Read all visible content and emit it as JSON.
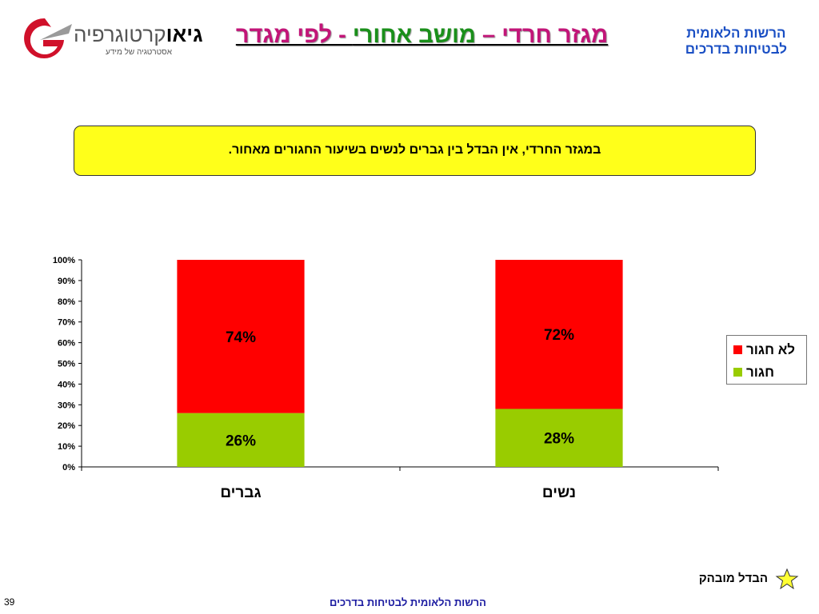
{
  "header": {
    "logo_brand_bold": "גיאו",
    "logo_brand_rest": "קרטוגרפיה",
    "logo_tagline": "אסטרטגיה של מידע",
    "title_part1": "מגזר חרדי – ",
    "title_part2": "מושב אחורי",
    "title_part3": " - לפי מגדר",
    "org_line1": "הרשות הלאומית",
    "org_line2": "לבטיחות בדרכים"
  },
  "callout": {
    "text": "במגזר החרדי, אין הבדל בין גברים לנשים בשיעור החגורים מאחור."
  },
  "chart_data": {
    "type": "bar",
    "stacked": true,
    "percent": true,
    "categories": [
      "גברים",
      "נשים"
    ],
    "series": [
      {
        "name": "חגור",
        "values": [
          26,
          28
        ],
        "labels": [
          "26%",
          "28%"
        ],
        "color": "#99cc00"
      },
      {
        "name": "לא חגור",
        "values": [
          74,
          72
        ],
        "labels": [
          "74%",
          "72%"
        ],
        "color": "#ff0000"
      }
    ],
    "ylim": [
      0,
      100
    ],
    "yticks": [
      "0%",
      "10%",
      "20%",
      "30%",
      "40%",
      "50%",
      "60%",
      "70%",
      "80%",
      "90%",
      "100%"
    ],
    "grid": false,
    "legend_position": "right"
  },
  "legend": {
    "items": [
      {
        "label": "לא חגור",
        "color": "#ff0000"
      },
      {
        "label": "חגור",
        "color": "#99cc00"
      }
    ]
  },
  "marker": {
    "label": "הבדל מובהק",
    "icon": "star-icon",
    "color": "#ffff33"
  },
  "footer": {
    "text": "הרשות הלאומית לבטיחות בדרכים",
    "page": "39"
  }
}
